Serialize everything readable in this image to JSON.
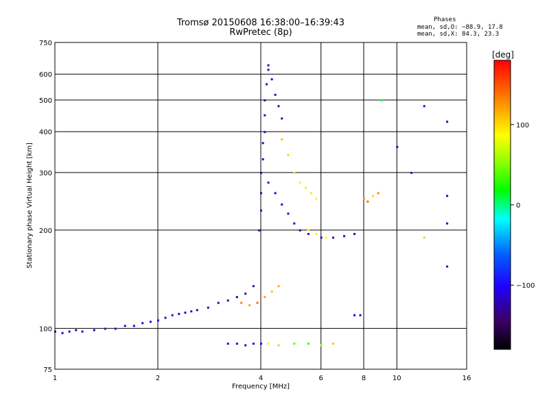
{
  "title_line1": "Tromsø 20150608 16:38:00–16:39:43",
  "title_line2": "RwPretec (8p)",
  "phases": {
    "title": "Phases",
    "o_line": "mean, sd,O: −88.9, 17.8",
    "x_line": "mean, sd,X:  84.3, 23.3"
  },
  "chart_data": {
    "type": "scatter",
    "xlabel": "Frequency [MHz]",
    "ylabel": "Stationary phase Virtual Height [km]",
    "x_scale": "log",
    "y_scale": "log",
    "xlim": [
      1,
      16
    ],
    "ylim": [
      75,
      750
    ],
    "x_ticks": [
      1,
      2,
      4,
      6,
      8,
      10,
      16
    ],
    "x_tick_labels": [
      "1",
      "2",
      "4",
      "6",
      "8",
      "10",
      "16"
    ],
    "y_ticks": [
      75,
      100,
      200,
      300,
      400,
      500,
      600,
      750
    ],
    "y_tick_labels": [
      "75",
      "100",
      "200",
      "300",
      "400",
      "500",
      "600",
      "750"
    ],
    "grid": true,
    "colorbar": {
      "label": "[deg]",
      "range": [
        -180,
        180
      ],
      "ticks": [
        100,
        0,
        -100
      ],
      "tick_labels": [
        "100",
        "0",
        "−100"
      ]
    },
    "series": [
      {
        "points": [
          [
            1.0,
            98,
            -120
          ],
          [
            1.05,
            97,
            -115
          ],
          [
            1.1,
            98,
            -110
          ],
          [
            1.15,
            99,
            -118
          ],
          [
            1.2,
            98,
            -112
          ],
          [
            1.3,
            99,
            -115
          ],
          [
            1.4,
            100,
            -110
          ],
          [
            1.5,
            100,
            -112
          ],
          [
            1.6,
            102,
            -115
          ],
          [
            1.7,
            102,
            -110
          ],
          [
            1.8,
            104,
            -112
          ],
          [
            1.9,
            105,
            -110
          ],
          [
            2.0,
            106,
            -108
          ],
          [
            2.1,
            108,
            -112
          ],
          [
            2.2,
            110,
            -110
          ],
          [
            2.3,
            111,
            -115
          ],
          [
            2.4,
            112,
            -118
          ],
          [
            2.5,
            113,
            -120
          ],
          [
            2.6,
            114,
            -115
          ],
          [
            2.8,
            116,
            -118
          ],
          [
            3.0,
            120,
            -120
          ],
          [
            3.2,
            122,
            -125
          ],
          [
            3.4,
            125,
            -130
          ],
          [
            3.6,
            128,
            -125
          ],
          [
            3.8,
            135,
            -120
          ]
        ]
      },
      {
        "points": [
          [
            3.95,
            200,
            -120
          ],
          [
            4.0,
            230,
            -115
          ],
          [
            4.0,
            260,
            -118
          ],
          [
            4.0,
            300,
            -125
          ],
          [
            4.05,
            330,
            -120
          ],
          [
            4.05,
            370,
            -115
          ],
          [
            4.1,
            400,
            -118
          ],
          [
            4.1,
            450,
            -112
          ],
          [
            4.1,
            500,
            -120
          ],
          [
            4.15,
            560,
            -118
          ],
          [
            4.2,
            620,
            -115
          ],
          [
            4.2,
            640,
            -112
          ],
          [
            4.3,
            580,
            -110
          ],
          [
            4.4,
            520,
            -115
          ],
          [
            4.5,
            480,
            -120
          ],
          [
            4.6,
            440,
            -118
          ]
        ]
      },
      {
        "points": [
          [
            4.2,
            280,
            -110
          ],
          [
            4.4,
            260,
            -115
          ],
          [
            4.6,
            240,
            -118
          ],
          [
            4.8,
            225,
            -120
          ],
          [
            5.0,
            210,
            -115
          ],
          [
            5.2,
            200,
            -120
          ],
          [
            5.5,
            195,
            -125
          ],
          [
            6.0,
            190,
            -130
          ],
          [
            6.5,
            190,
            -125
          ],
          [
            7.0,
            192,
            -120
          ],
          [
            7.5,
            195,
            -118
          ]
        ]
      },
      {
        "points": [
          [
            4.6,
            380,
            110
          ],
          [
            4.8,
            340,
            100
          ],
          [
            5.0,
            300,
            95
          ],
          [
            5.2,
            280,
            90
          ],
          [
            5.4,
            270,
            92
          ],
          [
            5.6,
            260,
            95
          ],
          [
            5.8,
            250,
            90
          ],
          [
            5.5,
            200,
            85
          ],
          [
            5.8,
            195,
            90
          ],
          [
            6.2,
            190,
            88
          ]
        ]
      },
      {
        "points": [
          [
            3.5,
            120,
            130
          ],
          [
            3.7,
            118,
            120
          ],
          [
            3.9,
            120,
            140
          ],
          [
            4.1,
            125,
            120
          ],
          [
            4.3,
            130,
            110
          ],
          [
            4.5,
            135,
            115
          ]
        ]
      },
      {
        "points": [
          [
            3.2,
            90,
            -110
          ],
          [
            3.4,
            90,
            -115
          ],
          [
            3.6,
            89,
            -120
          ],
          [
            3.8,
            90,
            -110
          ],
          [
            4.0,
            90,
            -105
          ],
          [
            4.2,
            90,
            80
          ],
          [
            4.5,
            89,
            60
          ],
          [
            5.0,
            90,
            40
          ],
          [
            5.5,
            90,
            30
          ],
          [
            6.0,
            89,
            60
          ],
          [
            6.5,
            90,
            110
          ]
        ]
      },
      {
        "points": [
          [
            7.5,
            110,
            -110
          ],
          [
            7.8,
            110,
            -115
          ],
          [
            8.0,
            250,
            120
          ],
          [
            8.2,
            245,
            140
          ],
          [
            8.5,
            255,
            100
          ],
          [
            8.8,
            260,
            130
          ],
          [
            9.0,
            500,
            10
          ],
          [
            10.0,
            360,
            -120
          ],
          [
            11.0,
            300,
            -100
          ],
          [
            12.0,
            480,
            -110
          ],
          [
            14.0,
            430,
            -120
          ],
          [
            14.0,
            210,
            -115
          ],
          [
            14.0,
            155,
            -110
          ],
          [
            14.0,
            255,
            -120
          ],
          [
            12.0,
            190,
            60
          ]
        ]
      }
    ]
  }
}
